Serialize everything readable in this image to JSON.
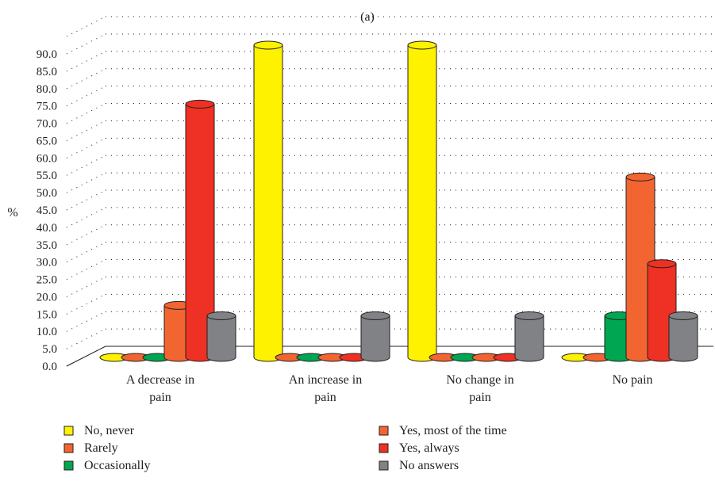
{
  "chart_data": {
    "type": "bar",
    "title": "(a)",
    "ylabel": "%",
    "ylim": [
      0,
      90
    ],
    "grid": true,
    "legend_placement": "bottom",
    "y_ticks": [
      "0.0",
      "5.0",
      "10.0",
      "15.0",
      "20.0",
      "25.0",
      "30.0",
      "35.0",
      "40.0",
      "45.0",
      "50.0",
      "55.0",
      "60.0",
      "65.0",
      "70.0",
      "75.0",
      "80.0",
      "85.0",
      "90.0"
    ],
    "categories": [
      [
        "A decrease in",
        "pain"
      ],
      [
        "An increase in",
        "pain"
      ],
      [
        "No change in",
        "pain"
      ],
      [
        "No pain"
      ]
    ],
    "series": [
      {
        "name": "No, never",
        "color": "#fff200",
        "values": [
          0,
          90,
          90,
          0
        ]
      },
      {
        "name": "Rarely",
        "color": "#f26531",
        "values": [
          0,
          0,
          0,
          0
        ]
      },
      {
        "name": "Occasionally",
        "color": "#00a651",
        "values": [
          0,
          0,
          0,
          12
        ]
      },
      {
        "name": "Yes, most of the time",
        "color": "#f26531",
        "values": [
          15,
          0,
          0,
          52
        ]
      },
      {
        "name": "Yes, always",
        "color": "#ee3124",
        "values": [
          73,
          0,
          0,
          27
        ]
      },
      {
        "name": "No answers",
        "color": "#808285",
        "values": [
          12,
          12,
          12,
          12
        ]
      }
    ],
    "legend_order": [
      0,
      3,
      1,
      4,
      2,
      5
    ]
  }
}
